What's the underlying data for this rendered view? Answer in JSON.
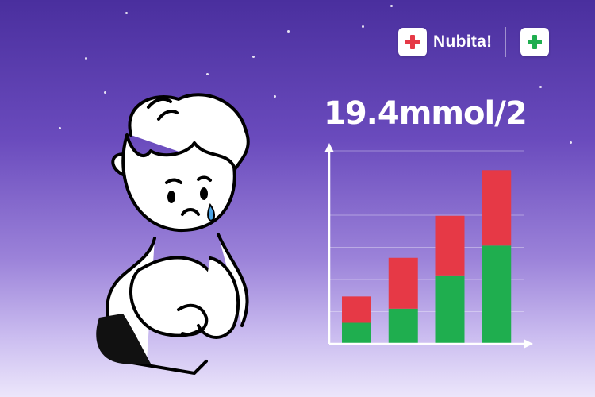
{
  "header": {
    "brand_text": "Nubita!",
    "logo_left_icon": "red-cross-icon",
    "logo_right_icon": "green-cross-icon",
    "colors": {
      "red": "#e63946",
      "green": "#1fae4f"
    }
  },
  "illustration": {
    "subject": "sad-child-sitting-icon"
  },
  "chart_data": {
    "type": "bar",
    "title": "19.4mmol/2",
    "categories": [
      "",
      "",
      "",
      ""
    ],
    "series": [
      {
        "values": [
          12,
          20,
          39,
          56
        ],
        "color": "#1fae4f"
      },
      {
        "values": [
          15,
          29,
          34,
          43
        ],
        "color": "#e63946"
      }
    ],
    "ylim": [
      0,
      110
    ],
    "grid": true,
    "stacked": true
  }
}
